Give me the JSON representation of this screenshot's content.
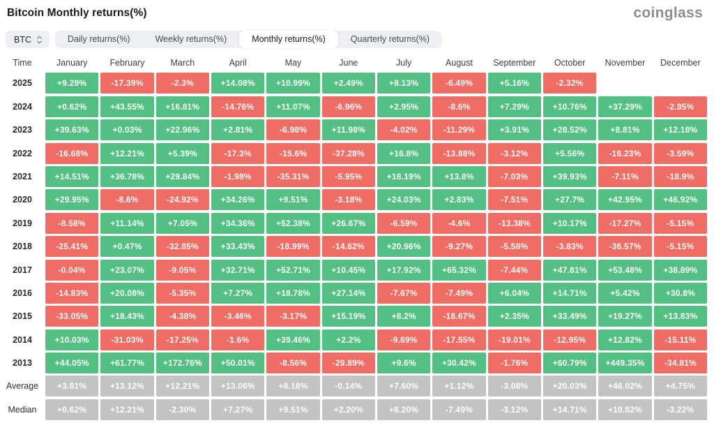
{
  "header": {
    "title": "Bitcoin Monthly returns(%)",
    "logo": "coinglass"
  },
  "controls": {
    "symbol": {
      "label": "BTC",
      "icon": "sort-arrows"
    },
    "tabs": [
      {
        "label": "Daily returns(%)",
        "active": false
      },
      {
        "label": "Weekly returns(%)",
        "active": false
      },
      {
        "label": "Monthly returns(%)",
        "active": true
      },
      {
        "label": "Quarterly returns(%)",
        "active": false
      }
    ]
  },
  "table": {
    "time_header": "Time",
    "months": [
      "January",
      "February",
      "March",
      "April",
      "May",
      "June",
      "July",
      "August",
      "September",
      "October",
      "November",
      "December"
    ],
    "rows": [
      {
        "label": "2025",
        "type": "year",
        "values": [
          "+9.29%",
          "-17.39%",
          "-2.3%",
          "+14.08%",
          "+10.99%",
          "+2.49%",
          "+8.13%",
          "-6.49%",
          "+5.16%",
          "-2.32%",
          null,
          null
        ]
      },
      {
        "label": "2024",
        "type": "year",
        "values": [
          "+0.62%",
          "+43.55%",
          "+16.81%",
          "-14.76%",
          "+11.07%",
          "-6.96%",
          "+2.95%",
          "-8.6%",
          "+7.29%",
          "+10.76%",
          "+37.29%",
          "-2.85%"
        ]
      },
      {
        "label": "2023",
        "type": "year",
        "values": [
          "+39.63%",
          "+0.03%",
          "+22.96%",
          "+2.81%",
          "-6.98%",
          "+11.98%",
          "-4.02%",
          "-11.29%",
          "+3.91%",
          "+28.52%",
          "+8.81%",
          "+12.18%"
        ]
      },
      {
        "label": "2022",
        "type": "year",
        "values": [
          "-16.68%",
          "+12.21%",
          "+5.39%",
          "-17.3%",
          "-15.6%",
          "-37.28%",
          "+16.8%",
          "-13.88%",
          "-3.12%",
          "+5.56%",
          "-16.23%",
          "-3.59%"
        ]
      },
      {
        "label": "2021",
        "type": "year",
        "values": [
          "+14.51%",
          "+36.78%",
          "+29.84%",
          "-1.98%",
          "-35.31%",
          "-5.95%",
          "+18.19%",
          "+13.8%",
          "-7.03%",
          "+39.93%",
          "-7.11%",
          "-18.9%"
        ]
      },
      {
        "label": "2020",
        "type": "year",
        "values": [
          "+29.95%",
          "-8.6%",
          "-24.92%",
          "+34.26%",
          "+9.51%",
          "-3.18%",
          "+24.03%",
          "+2.83%",
          "-7.51%",
          "+27.7%",
          "+42.95%",
          "+46.92%"
        ]
      },
      {
        "label": "2019",
        "type": "year",
        "values": [
          "-8.58%",
          "+11.14%",
          "+7.05%",
          "+34.36%",
          "+52.38%",
          "+26.67%",
          "-6.59%",
          "-4.6%",
          "-13.38%",
          "+10.17%",
          "-17.27%",
          "-5.15%"
        ]
      },
      {
        "label": "2018",
        "type": "year",
        "values": [
          "-25.41%",
          "+0.47%",
          "-32.85%",
          "+33.43%",
          "-18.99%",
          "-14.62%",
          "+20.96%",
          "-9.27%",
          "-5.58%",
          "-3.83%",
          "-36.57%",
          "-5.15%"
        ]
      },
      {
        "label": "2017",
        "type": "year",
        "values": [
          "-0.04%",
          "+23.07%",
          "-9.05%",
          "+32.71%",
          "+52.71%",
          "+10.45%",
          "+17.92%",
          "+65.32%",
          "-7.44%",
          "+47.81%",
          "+53.48%",
          "+38.89%"
        ]
      },
      {
        "label": "2016",
        "type": "year",
        "values": [
          "-14.83%",
          "+20.08%",
          "-5.35%",
          "+7.27%",
          "+18.78%",
          "+27.14%",
          "-7.67%",
          "-7.49%",
          "+6.04%",
          "+14.71%",
          "+5.42%",
          "+30.8%"
        ]
      },
      {
        "label": "2015",
        "type": "year",
        "values": [
          "-33.05%",
          "+18.43%",
          "-4.38%",
          "-3.46%",
          "-3.17%",
          "+15.19%",
          "+8.2%",
          "-18.67%",
          "+2.35%",
          "+33.49%",
          "+19.27%",
          "+13.83%"
        ]
      },
      {
        "label": "2014",
        "type": "year",
        "values": [
          "+10.03%",
          "-31.03%",
          "-17.25%",
          "-1.6%",
          "+39.46%",
          "+2.2%",
          "-9.69%",
          "-17.55%",
          "-19.01%",
          "-12.95%",
          "+12.82%",
          "-15.11%"
        ]
      },
      {
        "label": "2013",
        "type": "year",
        "values": [
          "+44.05%",
          "+61.77%",
          "+172.76%",
          "+50.01%",
          "-8.56%",
          "-29.89%",
          "+9.6%",
          "+30.42%",
          "-1.76%",
          "+60.79%",
          "+449.35%",
          "-34.81%"
        ]
      },
      {
        "label": "Average",
        "type": "summary",
        "values": [
          "+3.81%",
          "+13.12%",
          "+12.21%",
          "+13.06%",
          "+8.18%",
          "-0.14%",
          "+7.60%",
          "+1.12%",
          "-3.08%",
          "+20.03%",
          "+46.02%",
          "+4.75%"
        ]
      },
      {
        "label": "Median",
        "type": "summary",
        "values": [
          "+0.62%",
          "+12.21%",
          "-2.30%",
          "+7.27%",
          "+9.51%",
          "+2.20%",
          "+8.20%",
          "-7.49%",
          "-3.12%",
          "+14.71%",
          "+10.82%",
          "-3.22%"
        ]
      }
    ]
  },
  "colors": {
    "positive": "#53bf82",
    "negative": "#ef6d64",
    "summary": "#c3c3c3"
  }
}
